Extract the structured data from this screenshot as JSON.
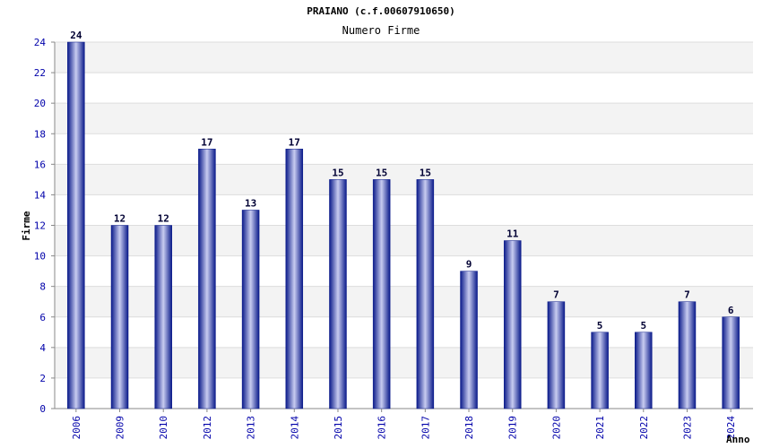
{
  "chart_data": {
    "type": "bar",
    "title": "PRAIANO (c.f.00607910650)",
    "subtitle": "Numero Firme",
    "xlabel": "Anno",
    "ylabel": "Firme",
    "categories": [
      "2006",
      "2009",
      "2010",
      "2012",
      "2013",
      "2014",
      "2015",
      "2016",
      "2017",
      "2018",
      "2019",
      "2020",
      "2021",
      "2022",
      "2023",
      "2024"
    ],
    "values": [
      24,
      12,
      12,
      17,
      13,
      17,
      15,
      15,
      15,
      9,
      11,
      7,
      5,
      5,
      7,
      6
    ],
    "ylim": [
      0,
      24
    ],
    "yticks": [
      0,
      2,
      4,
      6,
      8,
      10,
      12,
      14,
      16,
      18,
      20,
      22,
      24
    ],
    "grid": true,
    "colors": {
      "bar_dark": "#0a1a8a",
      "bar_light": "#c8ccf0",
      "band_alt": "#f3f3f3",
      "tick_text": "#0000aa"
    }
  }
}
